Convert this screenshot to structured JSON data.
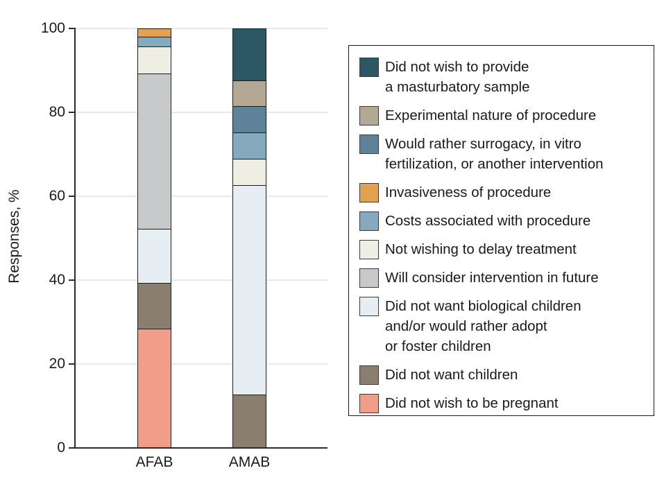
{
  "chart_data": {
    "type": "bar",
    "stacked": true,
    "title": "",
    "xlabel": "",
    "ylabel": "Responses, %",
    "ylim": [
      0,
      100
    ],
    "yticks": [
      0,
      20,
      40,
      60,
      80,
      100
    ],
    "grid": true,
    "values_unit": "percent",
    "categories": [
      "AFAB",
      "AMAB"
    ],
    "series": [
      {
        "name": "Did not wish to provide a masturbatory sample",
        "color": "#2e5766",
        "values": [
          0,
          12.5
        ],
        "legend_lines": [
          "Did not wish to provide",
          "a masturbatory sample"
        ]
      },
      {
        "name": "Experimental nature of procedure",
        "color": "#b3a893",
        "values": [
          0,
          6.25
        ],
        "legend_lines": [
          "Experimental nature of procedure"
        ]
      },
      {
        "name": "Would rather surrogacy, in vitro fertilization, or another intervention",
        "color": "#5e8398",
        "values": [
          0,
          6.25
        ],
        "legend_lines": [
          "Would rather surrogacy, in vitro",
          "fertilization, or another intervention"
        ]
      },
      {
        "name": "Invasiveness of procedure",
        "color": "#e2a151",
        "values": [
          2.2,
          0
        ],
        "legend_lines": [
          "Invasiveness of procedure"
        ]
      },
      {
        "name": "Costs associated with procedure",
        "color": "#85aabd",
        "values": [
          2.2,
          6.25
        ],
        "legend_lines": [
          "Costs associated with procedure"
        ]
      },
      {
        "name": "Not wishing to delay treatment",
        "color": "#efeee3",
        "values": [
          6.5,
          6.25
        ],
        "legend_lines": [
          "Not wishing to delay treatment"
        ]
      },
      {
        "name": "Will consider intervention in future",
        "color": "#c7c9cb",
        "values": [
          37.0,
          0
        ],
        "legend_lines": [
          "Will consider intervention in future"
        ]
      },
      {
        "name": "Did not want biological children and/or would rather adopt or foster children",
        "color": "#e7eef3",
        "values": [
          13.0,
          50.0
        ],
        "legend_lines": [
          "Did not want biological children",
          "and/or would rather adopt",
          "or foster children"
        ]
      },
      {
        "name": "Did not want children",
        "color": "#8a7f6f",
        "values": [
          10.9,
          12.5
        ],
        "legend_lines": [
          "Did not want children"
        ]
      },
      {
        "name": "Did not wish to be pregnant",
        "color": "#f29d89",
        "values": [
          28.3,
          0
        ],
        "legend_lines": [
          "Did not wish to be pregnant"
        ]
      }
    ],
    "legend": {
      "position": "right"
    },
    "colors": {
      "axis": "#2b2b2b",
      "gridline": "#e8e8e8",
      "segment_border": "#1c1c1c",
      "legend_border": "#1a1a1a",
      "text": "#1a1a1a"
    }
  }
}
